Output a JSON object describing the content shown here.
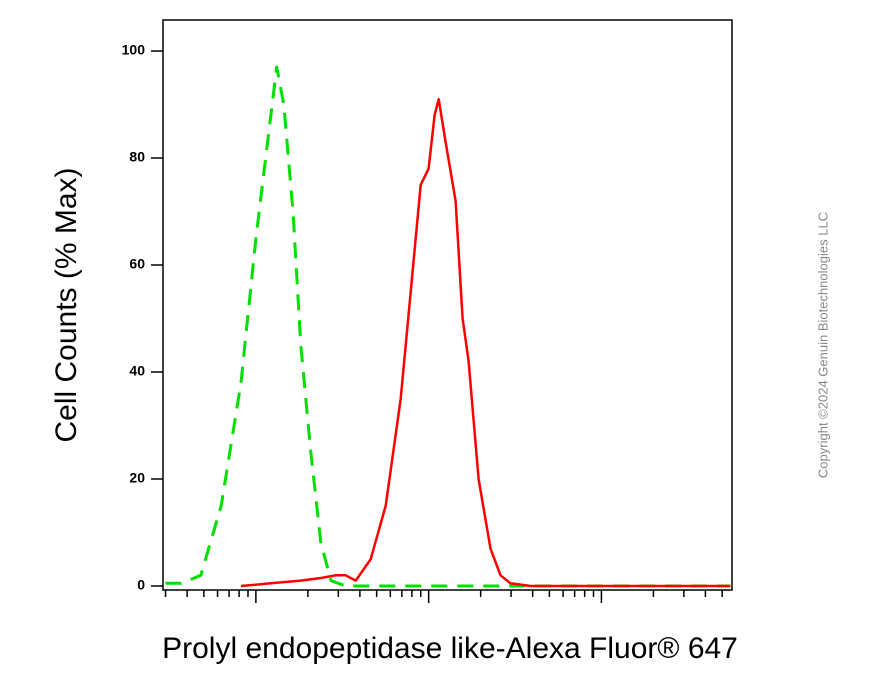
{
  "chart_data": {
    "type": "line",
    "y_label": "Cell Counts (% Max)",
    "x_label": "Prolyl endopeptidase like-Alexa Fluor® 647",
    "annotation": "Copyright ©2024 Genuin Biotechnologies LLC",
    "xscale": "log",
    "xlim": [
      29,
      57000
    ],
    "ylim": [
      -0.75,
      105.8
    ],
    "yticks": [
      0,
      20,
      40,
      60,
      80,
      100
    ],
    "xticks": [
      100,
      1000,
      10000
    ],
    "xminorticks": [
      30,
      40,
      50,
      60,
      70,
      80,
      90,
      200,
      300,
      400,
      500,
      600,
      700,
      800,
      900,
      2000,
      3000,
      4000,
      5000,
      6000,
      7000,
      8000,
      9000,
      20000,
      30000,
      40000,
      50000
    ],
    "series": [
      {
        "color": "#00e000",
        "dash": true,
        "x": [
          30,
          37,
          48,
          63,
          82,
          100,
          119,
          132,
          145,
          164,
          182,
          208,
          238,
          272,
          331,
          528,
          899,
          2000,
          55700
        ],
        "values": [
          0.5,
          0.5,
          2,
          15,
          38,
          65,
          85,
          97,
          90,
          70,
          45,
          25,
          8,
          1,
          0,
          0,
          0,
          0,
          0
        ]
      },
      {
        "color": "#ff0000",
        "dash": false,
        "x": [
          82,
          122,
          182,
          238,
          290,
          331,
          378,
          462,
          564,
          689,
          787,
          899,
          1000,
          1083,
          1143,
          1254,
          1432,
          1573,
          1703,
          1945,
          2281,
          2607,
          2979,
          3890,
          55700
        ],
        "values": [
          0,
          0.5,
          1,
          1.5,
          2,
          2,
          1,
          5,
          15,
          35,
          55,
          75,
          78,
          88,
          91,
          83,
          72,
          50,
          42,
          20,
          7,
          2,
          0.5,
          0,
          0
        ]
      }
    ]
  }
}
